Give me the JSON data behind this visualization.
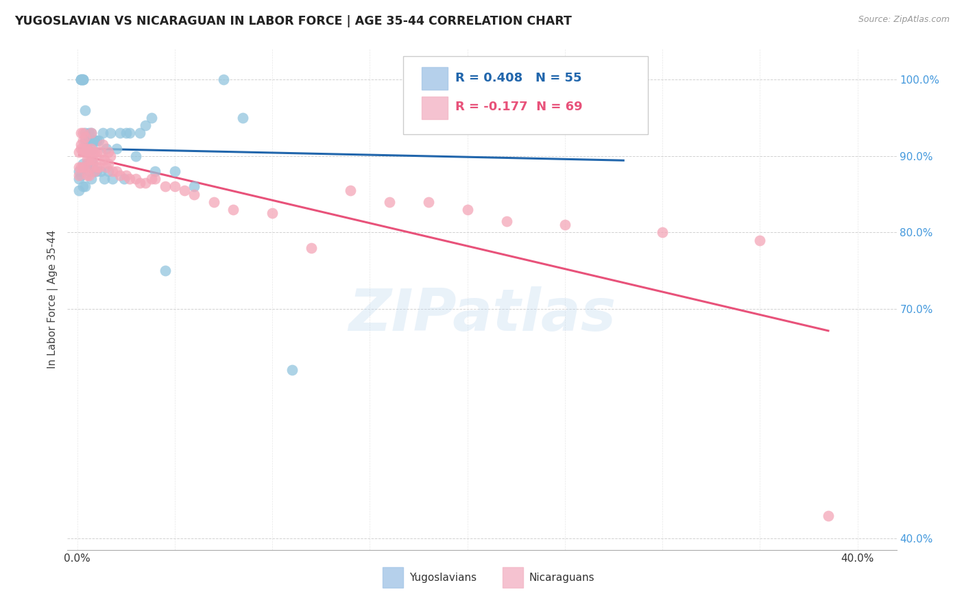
{
  "title": "YUGOSLAVIAN VS NICARAGUAN IN LABOR FORCE | AGE 35-44 CORRELATION CHART",
  "source": "Source: ZipAtlas.com",
  "ylabel": "In Labor Force | Age 35-44",
  "xlim": [
    -0.005,
    0.42
  ],
  "ylim": [
    0.385,
    1.04
  ],
  "x_ticks": [
    0.0,
    0.4
  ],
  "x_tick_labels": [
    "0.0%",
    "40.0%"
  ],
  "y_ticks": [
    0.4,
    0.7,
    0.8,
    0.9,
    1.0
  ],
  "y_tick_labels": [
    "40.0%",
    "70.0%",
    "80.0%",
    "90.0%",
    "100.0%"
  ],
  "watermark": "ZIPatlas",
  "legend_R_blue": "0.408",
  "legend_N_blue": "55",
  "legend_R_pink": "-0.177",
  "legend_N_pink": "69",
  "blue_color": "#92c5de",
  "pink_color": "#f4a6b8",
  "blue_line_color": "#2166ac",
  "pink_line_color": "#e8527a",
  "blue_legend_color": "#a8c8e8",
  "pink_legend_color": "#f4b8c8",
  "yugo_x": [
    0.001,
    0.001,
    0.001,
    0.002,
    0.002,
    0.002,
    0.002,
    0.003,
    0.003,
    0.003,
    0.003,
    0.003,
    0.004,
    0.004,
    0.004,
    0.004,
    0.005,
    0.005,
    0.005,
    0.006,
    0.006,
    0.006,
    0.007,
    0.007,
    0.008,
    0.008,
    0.009,
    0.009,
    0.01,
    0.01,
    0.011,
    0.012,
    0.013,
    0.014,
    0.015,
    0.016,
    0.017,
    0.018,
    0.02,
    0.022,
    0.024,
    0.025,
    0.027,
    0.03,
    0.032,
    0.035,
    0.038,
    0.04,
    0.045,
    0.05,
    0.06,
    0.075,
    0.085,
    0.11,
    0.28
  ],
  "yugo_y": [
    0.855,
    0.87,
    0.88,
    1.0,
    1.0,
    1.0,
    0.875,
    1.0,
    1.0,
    1.0,
    0.89,
    0.86,
    0.93,
    0.92,
    0.86,
    0.96,
    0.92,
    0.91,
    0.89,
    0.92,
    0.88,
    0.93,
    0.93,
    0.87,
    0.91,
    0.89,
    0.92,
    0.88,
    0.92,
    0.88,
    0.92,
    0.88,
    0.93,
    0.87,
    0.91,
    0.88,
    0.93,
    0.87,
    0.91,
    0.93,
    0.87,
    0.93,
    0.93,
    0.9,
    0.93,
    0.94,
    0.95,
    0.88,
    0.75,
    0.88,
    0.86,
    1.0,
    0.95,
    0.62,
    1.0
  ],
  "nica_x": [
    0.001,
    0.001,
    0.001,
    0.002,
    0.002,
    0.002,
    0.002,
    0.003,
    0.003,
    0.003,
    0.003,
    0.003,
    0.004,
    0.004,
    0.004,
    0.004,
    0.005,
    0.005,
    0.005,
    0.005,
    0.006,
    0.006,
    0.006,
    0.007,
    0.007,
    0.007,
    0.007,
    0.008,
    0.008,
    0.009,
    0.009,
    0.01,
    0.01,
    0.011,
    0.012,
    0.012,
    0.013,
    0.014,
    0.015,
    0.016,
    0.016,
    0.017,
    0.018,
    0.02,
    0.022,
    0.025,
    0.027,
    0.03,
    0.032,
    0.035,
    0.038,
    0.04,
    0.045,
    0.05,
    0.055,
    0.06,
    0.07,
    0.08,
    0.1,
    0.12,
    0.14,
    0.16,
    0.18,
    0.2,
    0.22,
    0.25,
    0.3,
    0.35,
    0.385
  ],
  "nica_y": [
    0.885,
    0.905,
    0.875,
    0.93,
    0.915,
    0.91,
    0.885,
    0.905,
    0.93,
    0.92,
    0.885,
    0.91,
    0.885,
    0.905,
    0.925,
    0.91,
    0.905,
    0.91,
    0.895,
    0.875,
    0.905,
    0.895,
    0.875,
    0.895,
    0.93,
    0.91,
    0.885,
    0.895,
    0.905,
    0.905,
    0.88,
    0.905,
    0.885,
    0.885,
    0.905,
    0.895,
    0.915,
    0.895,
    0.885,
    0.905,
    0.89,
    0.9,
    0.88,
    0.88,
    0.875,
    0.875,
    0.87,
    0.87,
    0.865,
    0.865,
    0.87,
    0.87,
    0.86,
    0.86,
    0.855,
    0.85,
    0.84,
    0.83,
    0.825,
    0.78,
    0.855,
    0.84,
    0.84,
    0.83,
    0.815,
    0.81,
    0.8,
    0.79,
    0.43
  ]
}
